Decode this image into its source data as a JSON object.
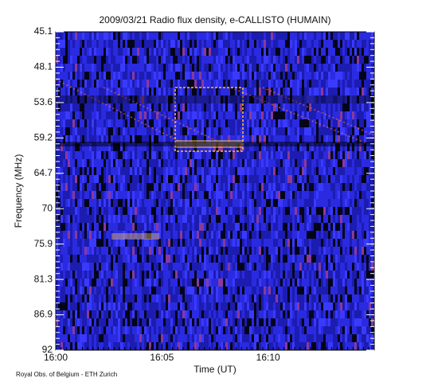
{
  "chart_data": {
    "type": "spectrogram",
    "title": "2009/03/21  Radio flux density, e-CALLISTO (HUMAIN)",
    "xlabel": "Time (UT)",
    "ylabel": "Frequency (MHz)",
    "footer": "Royal Obs. of Belgium - ETH Zurich",
    "xlim": [
      "16:00",
      "16:15"
    ],
    "xticks": [
      "16:00",
      "16:05",
      "16:10"
    ],
    "ycategories": [
      45.1,
      48.1,
      53.6,
      59.2,
      64.7,
      70.0,
      75.9,
      81.3,
      86.9,
      92.0
    ]
  }
}
